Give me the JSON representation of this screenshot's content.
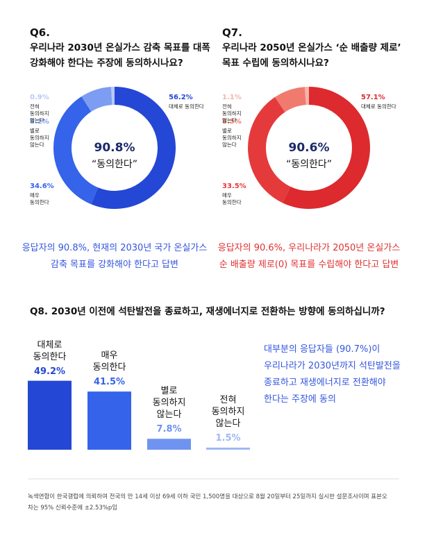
{
  "chart_data": [
    {
      "type": "donut",
      "label": "Q6.",
      "title": "우리나라 2030년 온실가스 감축 목표를 대폭 강화해야 한다는 주장에 동의하시나요?",
      "center_value_label": "90.8%",
      "center_text": "“동의한다”",
      "categories": [
        "대체로 동의한다",
        "매우 동의한다",
        "별로 동의하지 않는다",
        "전혀 동의하지 않는다"
      ],
      "values": [
        56.2,
        34.6,
        8.2,
        0.9
      ],
      "value_labels": [
        "56.2%",
        "34.6%",
        "8.2%",
        "0.9%"
      ],
      "colors": [
        "#2547d6",
        "#3563ea",
        "#7d9df2",
        "#b8c9f7"
      ],
      "note": "응답자의 90.8%, 현재의 2030년 국가 온실가스 감축 목표를 강화해야 한다고 답변",
      "note_color": "#3355dd"
    },
    {
      "type": "donut",
      "label": "Q7.",
      "title": "우리나라 2050년 온실가스 ‘순 배출량 제로’ 목표 수립에 동의하시나요?",
      "center_value_label": "90.6%",
      "center_text": "“동의한다”",
      "categories": [
        "대체로 동의한다",
        "매우 동의한다",
        "별로 동의하지 않는다",
        "전혀 동의하지 않는다"
      ],
      "values": [
        57.1,
        33.5,
        8.3,
        1.1
      ],
      "value_labels": [
        "57.1%",
        "33.5%",
        "8.3%",
        "1.1%"
      ],
      "colors": [
        "#dc2a2f",
        "#e53a3c",
        "#f07a6e",
        "#f6b3aa"
      ],
      "note": "응답자의 90.6%, 우리나라가 2050년 온실가스 순 배출량 제로(0) 목표를 수립해야 한다고 답변",
      "note_color": "#e03030"
    },
    {
      "type": "bar",
      "title": "Q8. 2030년 이전에 석탄발전을 종료하고, 재생에너지로 전환하는 방향에 동의하십니까?",
      "categories": [
        "대체로 동의한다",
        "매우 동의한다",
        "별로 동의하지 않는다",
        "전혀 동의하지 않는다"
      ],
      "values": [
        49.2,
        41.5,
        7.8,
        1.5
      ],
      "value_labels": [
        "49.2%",
        "41.5%",
        "7.8%",
        "1.5%"
      ],
      "colors": [
        "#2547d6",
        "#3563ea",
        "#6f93f0",
        "#9fb8f5"
      ],
      "note": "대부분의 응답자들 (90.7%)이 우리나라가 2030년까지 석탄발전을 종료하고 재생에너지로 전환해야 한다는 주장에 동의",
      "note_color": "#3355dd"
    }
  ],
  "footnote": "녹색연합이 한국갤럽에 의뢰하여 전국의 만 14세 이상 69세 이하 국민 1,500명을 대상으로 8월 20일부터 25일까지 실시한 설문조사이며 표본오차는 95% 신뢰수준에 ±2.53%p임"
}
